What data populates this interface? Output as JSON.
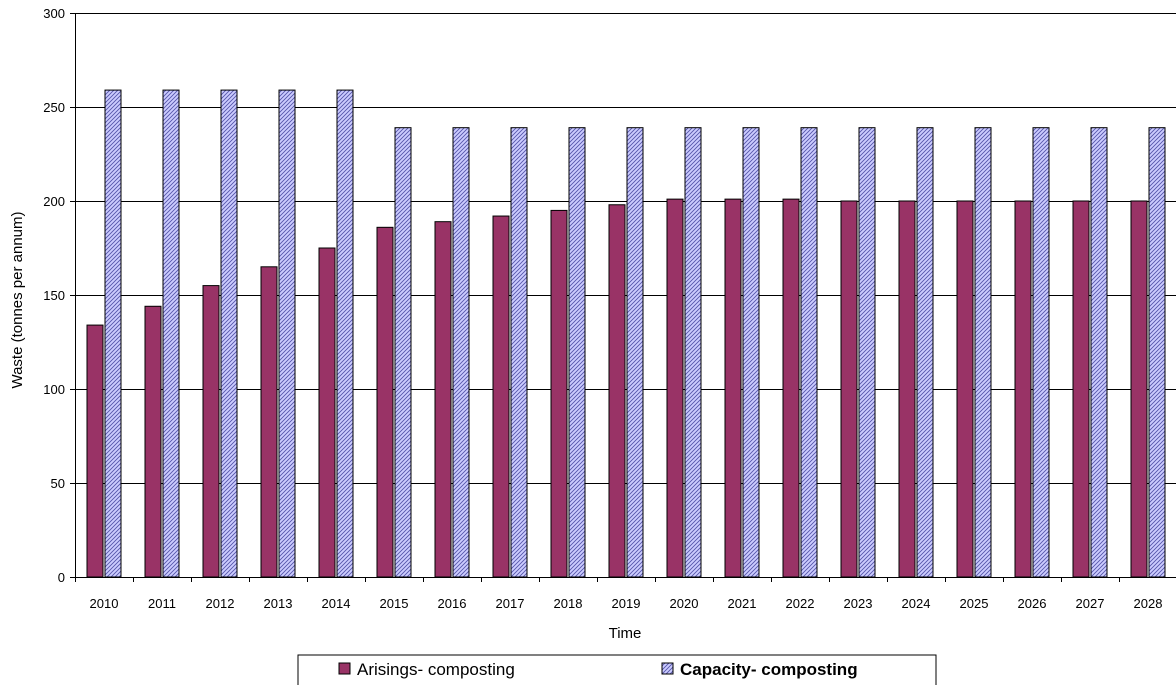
{
  "chart_data": {
    "type": "bar",
    "title": "",
    "xlabel": "Time",
    "ylabel": "Waste (tonnes per annum)",
    "ylim": [
      0,
      300
    ],
    "yticks": [
      0,
      50,
      100,
      150,
      200,
      250,
      300
    ],
    "grid": true,
    "legend_position": "bottom",
    "categories": [
      "2010",
      "2011",
      "2012",
      "2013",
      "2014",
      "2015",
      "2016",
      "2017",
      "2018",
      "2019",
      "2020",
      "2021",
      "2022",
      "2023",
      "2024",
      "2025",
      "2026",
      "2027",
      "2028"
    ],
    "series": [
      {
        "name": "Arisings- composting",
        "color": "#993366",
        "pattern": "solid",
        "values": [
          134,
          144,
          155,
          165,
          175,
          186,
          189,
          192,
          195,
          198,
          201,
          201,
          201,
          200,
          200,
          200,
          200,
          200,
          200
        ]
      },
      {
        "name": "Capacity- composting",
        "color": "#ccccff",
        "pattern": "diagonal-hatch",
        "values": [
          259,
          259,
          259,
          259,
          259,
          239,
          239,
          239,
          239,
          239,
          239,
          239,
          239,
          239,
          239,
          239,
          239,
          239,
          239
        ]
      }
    ]
  }
}
